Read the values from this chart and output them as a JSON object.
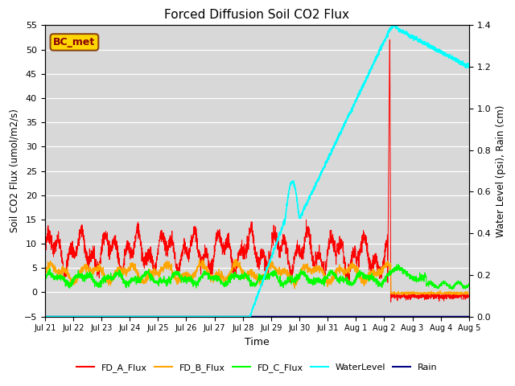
{
  "title": "Forced Diffusion Soil CO2 Flux",
  "ylabel_left": "Soil CO2 Flux (umol/m2/s)",
  "ylabel_right": "Water Level (psi), Rain (cm)",
  "xlabel": "Time",
  "ylim_left": [
    -5,
    55
  ],
  "ylim_right": [
    0.0,
    1.4
  ],
  "bg_color": "#d8d8d8",
  "legend_labels": [
    "FD_A_Flux",
    "FD_B_Flux",
    "FD_C_Flux",
    "WaterLevel",
    "Rain"
  ],
  "legend_colors": [
    "red",
    "orange",
    "lime",
    "cyan",
    "navy"
  ],
  "bc_met_label": "BC_met",
  "x_tick_labels": [
    "Jul 21",
    "Jul 22",
    "Jul 23",
    "Jul 24",
    "Jul 25",
    "Jul 26",
    "Jul 27",
    "Jul 28",
    "Jul 29",
    "Jul 30",
    "Jul 31",
    "Aug 1",
    "Aug 2",
    "Aug 3",
    "Aug 4",
    "Aug 5"
  ],
  "yticks_left": [
    -5,
    0,
    5,
    10,
    15,
    20,
    25,
    30,
    35,
    40,
    45,
    50,
    55
  ],
  "yticks_right": [
    0.0,
    0.2,
    0.4,
    0.6,
    0.8,
    1.0,
    1.2,
    1.4
  ]
}
